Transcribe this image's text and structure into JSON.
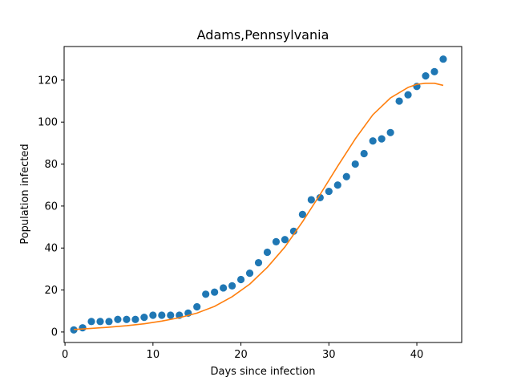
{
  "chart_data": {
    "type": "scatter",
    "title": "Adams,Pennsylvania",
    "xlabel": "Days since infection",
    "ylabel": "Population infected",
    "xlim": [
      -0.1,
      45.1
    ],
    "ylim": [
      -5,
      136
    ],
    "xticks": [
      "0",
      "10",
      "20",
      "30",
      "40"
    ],
    "xtick_values": [
      0,
      10,
      20,
      30,
      40
    ],
    "yticks": [
      "0",
      "20",
      "40",
      "60",
      "80",
      "100",
      "120"
    ],
    "ytick_values": [
      0,
      20,
      40,
      60,
      80,
      100,
      120
    ],
    "grid": false,
    "series": [
      {
        "kind": "points",
        "color": "#1f77b4",
        "x": [
          1,
          2,
          3,
          4,
          5,
          6,
          7,
          8,
          9,
          10,
          11,
          12,
          13,
          14,
          15,
          16,
          17,
          18,
          19,
          20,
          21,
          22,
          23,
          24,
          25,
          26,
          27,
          28,
          29,
          30,
          31,
          32,
          33,
          34,
          35,
          36,
          37,
          38,
          39,
          40,
          41,
          42,
          43
        ],
        "y": [
          1,
          2,
          5,
          5,
          5,
          6,
          6,
          6,
          7,
          8,
          8,
          8,
          8,
          9,
          12,
          18,
          19,
          21,
          22,
          25,
          28,
          33,
          38,
          43,
          44,
          48,
          56,
          63,
          64,
          67,
          70,
          74,
          80,
          85,
          91,
          92,
          95,
          110,
          113,
          117,
          122,
          124,
          130
        ]
      },
      {
        "kind": "line",
        "color": "#ff7f0e",
        "x": [
          1,
          3,
          5,
          7,
          9,
          11,
          13,
          15,
          17,
          19,
          21,
          23,
          25,
          27,
          29,
          31,
          33,
          35,
          37,
          39,
          40,
          41,
          42,
          43
        ],
        "y": [
          1.2,
          1.7,
          2.3,
          3.0,
          3.9,
          5.2,
          6.8,
          9.0,
          12.2,
          16.8,
          22.8,
          30.8,
          40.5,
          52.5,
          65.5,
          79.0,
          92.0,
          103.5,
          111.5,
          116.5,
          118.0,
          118.5,
          118.5,
          117.5
        ]
      }
    ]
  }
}
